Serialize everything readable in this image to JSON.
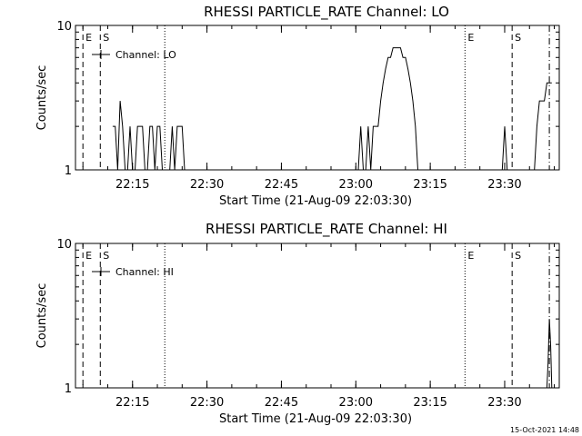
{
  "timestamp": "15-Oct-2021 14:48",
  "chart_data": [
    {
      "type": "line",
      "title": "RHESSI PARTICLE_RATE Channel: LO",
      "xlabel": "Start Time (21-Aug-09 22:03:30)",
      "ylabel": "Counts/sec",
      "y_scale": "log",
      "ylim": [
        1,
        10
      ],
      "y_ticks": [
        "1",
        "10"
      ],
      "x_ticks": [
        "22:15",
        "22:30",
        "22:45",
        "23:00",
        "23:15",
        "23:30"
      ],
      "xlim": [
        "22:03:30",
        "23:41:00"
      ],
      "legend": {
        "label": "Channel: LO",
        "placement": "top-left"
      },
      "markers": [
        {
          "time": "22:05:00",
          "style": "dashed",
          "label": "E"
        },
        {
          "time": "22:08:30",
          "style": "dashed",
          "label": "S"
        },
        {
          "time": "22:21:30",
          "style": "dotted",
          "label": ""
        },
        {
          "time": "23:22:00",
          "style": "dotted",
          "label": "E"
        },
        {
          "time": "23:31:30",
          "style": "dashed",
          "label": "S"
        },
        {
          "time": "23:39:00",
          "style": "dashdot",
          "label": ""
        }
      ],
      "series": [
        {
          "x": [
            "22:09:30",
            "22:10:00",
            "22:11:00",
            "22:11:30",
            "22:12:00",
            "22:12:30",
            "22:13:00",
            "22:13:30",
            "22:14:00",
            "22:14:30",
            "22:15:00",
            "22:15:30",
            "22:16:00",
            "22:16:30",
            "22:17:00",
            "22:17:30",
            "22:18:00",
            "22:18:30",
            "22:19:00",
            "22:19:30",
            "22:20:00",
            "22:20:30",
            "22:21:00",
            "22:22:30",
            "22:23:00",
            "22:23:30",
            "22:24:00",
            "22:24:30",
            "22:25:00",
            "22:25:30",
            "23:00:30",
            "23:01:00",
            "23:01:30",
            "23:02:00",
            "23:02:30",
            "23:03:00",
            "23:03:30",
            "23:04:00",
            "23:04:30",
            "23:05:00",
            "23:05:30",
            "23:06:00",
            "23:06:30",
            "23:07:00",
            "23:07:30",
            "23:08:00",
            "23:08:30",
            "23:09:00",
            "23:09:30",
            "23:10:00",
            "23:10:30",
            "23:11:00",
            "23:11:30",
            "23:12:00",
            "23:12:30",
            "23:13:00",
            "23:13:30",
            "23:29:30",
            "23:30:00",
            "23:30:30",
            "23:36:00",
            "23:36:30",
            "23:37:00",
            "23:37:30",
            "23:38:00",
            "23:38:30",
            "23:39:00",
            "23:39:30"
          ],
          "y": [
            1,
            1,
            2,
            2,
            1,
            3,
            2,
            1,
            1,
            2,
            1,
            1,
            2,
            2,
            2,
            1,
            1,
            2,
            2,
            1,
            2,
            2,
            1,
            1,
            2,
            1,
            2,
            2,
            2,
            1,
            1,
            2,
            1,
            1,
            2,
            1,
            2,
            2,
            2,
            3,
            4,
            5,
            6,
            6,
            7,
            7,
            7,
            7,
            6,
            6,
            5,
            4,
            3,
            2,
            1,
            1,
            1,
            1,
            2,
            1,
            1,
            2,
            3,
            3,
            3,
            4,
            4,
            4
          ]
        }
      ]
    },
    {
      "type": "line",
      "title": "RHESSI PARTICLE_RATE Channel: HI",
      "xlabel": "Start Time (21-Aug-09 22:03:30)",
      "ylabel": "Counts/sec",
      "y_scale": "log",
      "ylim": [
        1,
        10
      ],
      "y_ticks": [
        "1",
        "10"
      ],
      "x_ticks": [
        "22:15",
        "22:30",
        "22:45",
        "23:00",
        "23:15",
        "23:30"
      ],
      "xlim": [
        "22:03:30",
        "23:41:00"
      ],
      "legend": {
        "label": "Channel: HI",
        "placement": "top-left"
      },
      "markers": [
        {
          "time": "22:05:00",
          "style": "dashed",
          "label": "E"
        },
        {
          "time": "22:08:30",
          "style": "dashed",
          "label": "S"
        },
        {
          "time": "22:21:30",
          "style": "dotted",
          "label": ""
        },
        {
          "time": "23:22:00",
          "style": "dotted",
          "label": "E"
        },
        {
          "time": "23:31:30",
          "style": "dashed",
          "label": "S"
        },
        {
          "time": "23:39:00",
          "style": "dashdot",
          "label": ""
        }
      ],
      "series": [
        {
          "x": [
            "23:38:30",
            "23:38:45",
            "23:39:00",
            "23:39:15",
            "23:39:30"
          ],
          "y": [
            1,
            1.5,
            3,
            2,
            1
          ]
        }
      ]
    }
  ]
}
